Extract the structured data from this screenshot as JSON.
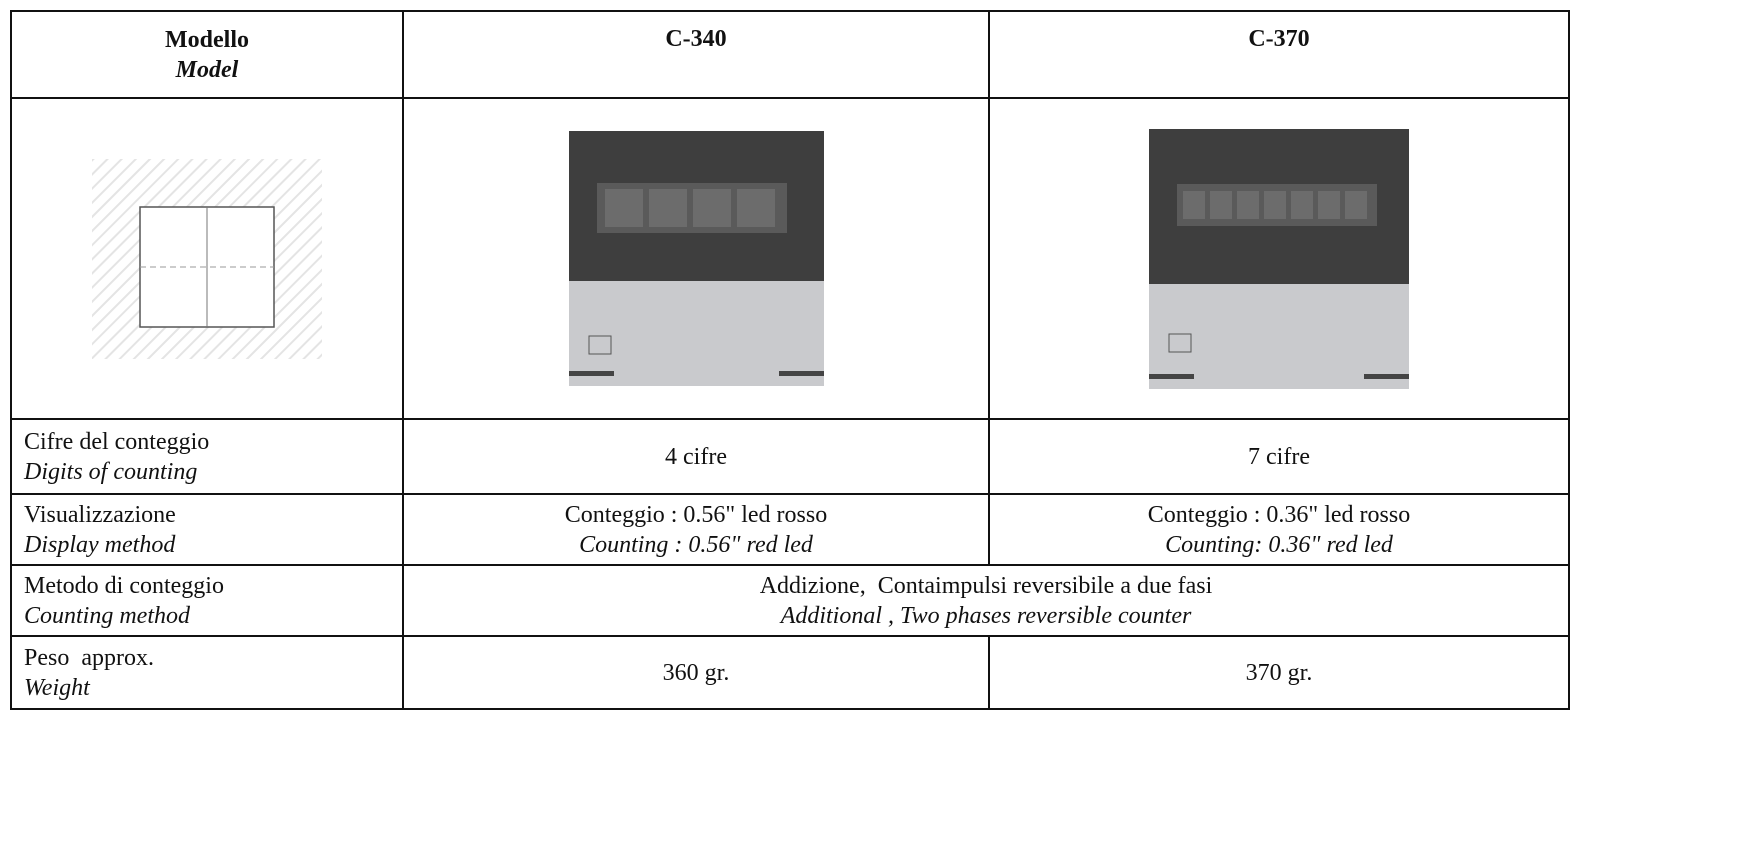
{
  "table": {
    "header": {
      "label_it": "Modello",
      "label_en": "Model",
      "models": [
        "C-340",
        "C-370"
      ]
    },
    "rows": [
      {
        "label_it": "Cifre del conteggio",
        "label_en": "Digits of counting",
        "values": [
          "4 cifre",
          "7 cifre"
        ]
      },
      {
        "label_it": "Visualizzazione",
        "label_en": "Display method",
        "values": [
          {
            "it": "Conteggio : 0.56\" led rosso",
            "en": "Counting : 0.56\" red led"
          },
          {
            "it": "Conteggio : 0.36\" led rosso",
            "en": "Counting: 0.36\" red led"
          }
        ]
      },
      {
        "label_it": "Metodo di conteggio",
        "label_en": "Counting method",
        "merged": {
          "it": "Addizione,  Contaimpulsi reversibile a due fasi",
          "en": "Additional , Two phases reversible counter"
        }
      },
      {
        "label_it": "Peso  approx.",
        "label_en": "Weight",
        "values": [
          "360 gr.",
          "370 gr."
        ]
      }
    ]
  }
}
